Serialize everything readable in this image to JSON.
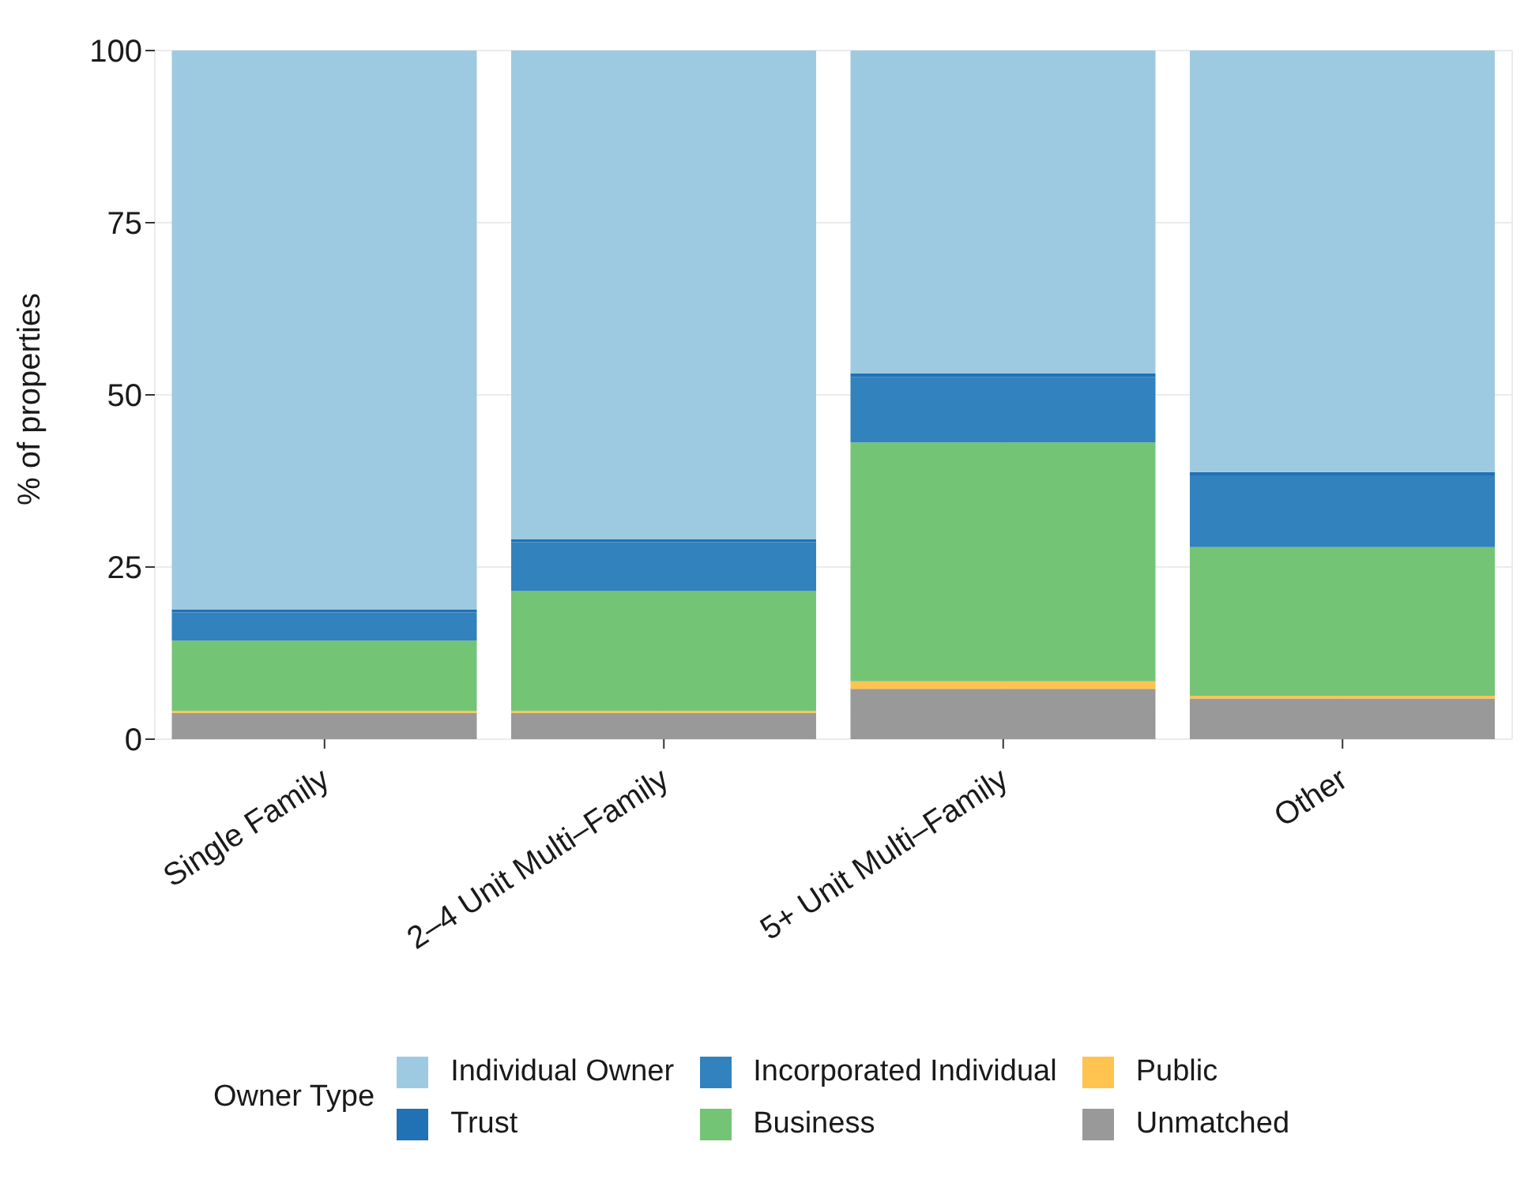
{
  "chart_data": {
    "type": "bar",
    "stacked": true,
    "categories": [
      "Single Family",
      "2–4 Unit Multi–Family",
      "5+ Unit Multi–Family",
      "Other"
    ],
    "ylabel": "% of properties",
    "legend_title": "Owner Type",
    "ylim": [
      0,
      100
    ],
    "yticks": [
      0,
      25,
      50,
      75,
      100
    ],
    "grid": true,
    "legend": "bottom",
    "series": [
      {
        "name": "Unmatched",
        "color": "#999999",
        "values": [
          3.8,
          3.8,
          7.3,
          5.9
        ]
      },
      {
        "name": "Public",
        "color": "#fec44f",
        "values": [
          0.3,
          0.3,
          1.1,
          0.4
        ]
      },
      {
        "name": "Business",
        "color": "#74c476",
        "values": [
          10.2,
          17.4,
          34.7,
          21.6
        ]
      },
      {
        "name": "Incorporated Individual",
        "color": "#3182bd",
        "values": [
          4.1,
          7.1,
          9.5,
          10.4
        ]
      },
      {
        "name": "Trust",
        "color": "#2171b5",
        "values": [
          0.4,
          0.4,
          0.5,
          0.5
        ]
      },
      {
        "name": "Individual Owner",
        "color": "#9ecae1",
        "values": [
          81.2,
          71.0,
          46.9,
          61.2
        ]
      }
    ]
  }
}
